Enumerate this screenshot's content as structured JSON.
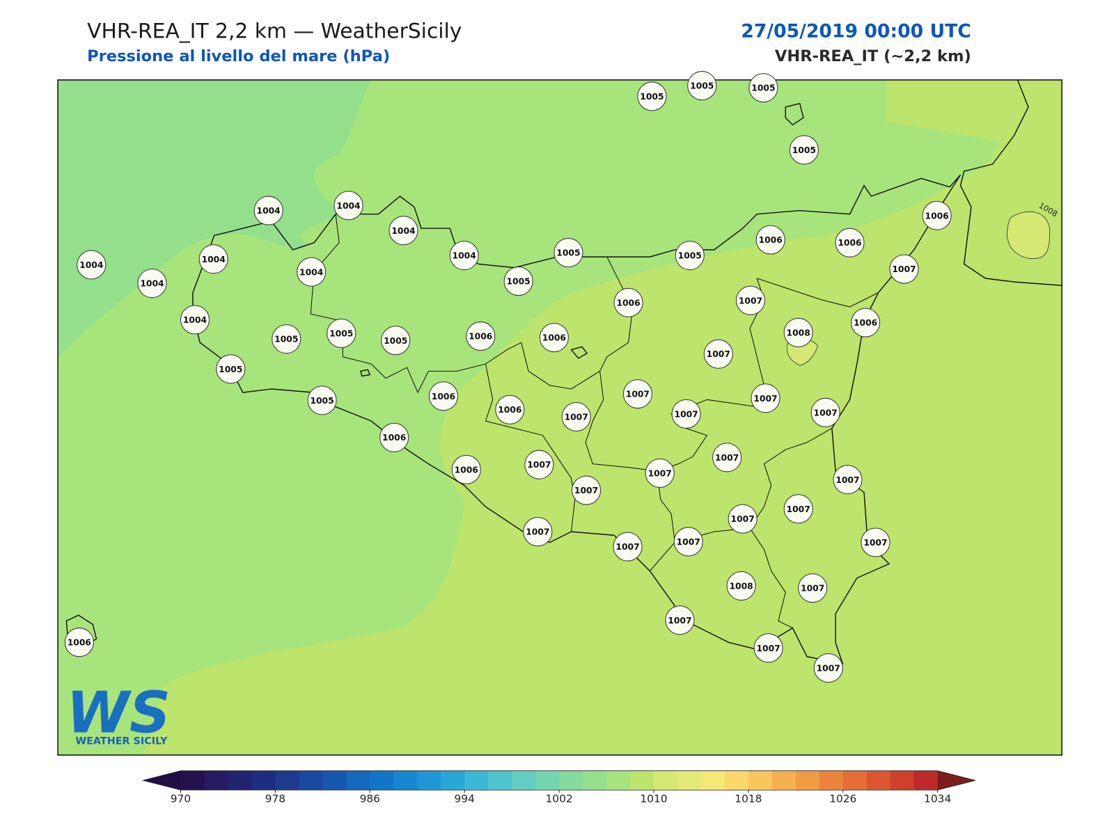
{
  "header": {
    "title": "VHR-REA_IT 2,2 km — WeatherSicily",
    "subtitle": "Pressione al livello del mare (hPa)",
    "date": "27/05/2019 00:00 UTC",
    "model": "VHR-REA_IT (~2,2 km)"
  },
  "map": {
    "station_values": [
      1005,
      1005,
      1005,
      1005,
      1004,
      1004,
      1004,
      1006,
      1004,
      1004,
      1004,
      1004,
      1004,
      1005,
      1005,
      1005,
      1006,
      1006,
      1007,
      1004,
      1005,
      1005,
      1005,
      1006,
      1006,
      1006,
      1007,
      1008,
      1006,
      1005,
      1007,
      1006,
      1005,
      1007,
      1007,
      1006,
      1007,
      1007,
      1007,
      1006,
      1007,
      1007,
      1006,
      1007,
      1007,
      1007,
      1007,
      1007,
      1007,
      1007,
      1007,
      1007,
      1008,
      1007,
      1007,
      1006,
      1007,
      1007
    ],
    "contour_labels": [
      1008
    ]
  },
  "colorbar": {
    "bounds": [
      970,
      972,
      974,
      976,
      978,
      980,
      982,
      984,
      986,
      988,
      990,
      992,
      994,
      996,
      998,
      1000,
      1002,
      1004,
      1006,
      1008,
      1010,
      1012,
      1014,
      1016,
      1018,
      1020,
      1022,
      1024,
      1026,
      1028,
      1030,
      1032,
      1034
    ],
    "colors": [
      "#24124f",
      "#261a62",
      "#222470",
      "#1f2d80",
      "#1d3a8e",
      "#1a4aa0",
      "#1658b0",
      "#1468bd",
      "#1176c8",
      "#1586cf",
      "#1e96d3",
      "#29a7d6",
      "#3ab8d5",
      "#4ec4cc",
      "#62cdc0",
      "#72d5b0",
      "#86da9c",
      "#96e08c",
      "#a8e47c",
      "#bde46c",
      "#d4e873",
      "#e3ea78",
      "#f5e876",
      "#fad86a",
      "#f8c65c",
      "#f4b14f",
      "#f09c45",
      "#eb833c",
      "#e56c36",
      "#db5530",
      "#cf3f2d",
      "#bd2a2a"
    ],
    "extend_colors": [
      "#1f0f45",
      "#7a1e1e"
    ],
    "ticks": [
      970,
      978,
      986,
      994,
      1002,
      1010,
      1018,
      1026,
      1034
    ]
  },
  "logo": {
    "mark": "WS",
    "name": "WEATHER SICILY"
  }
}
